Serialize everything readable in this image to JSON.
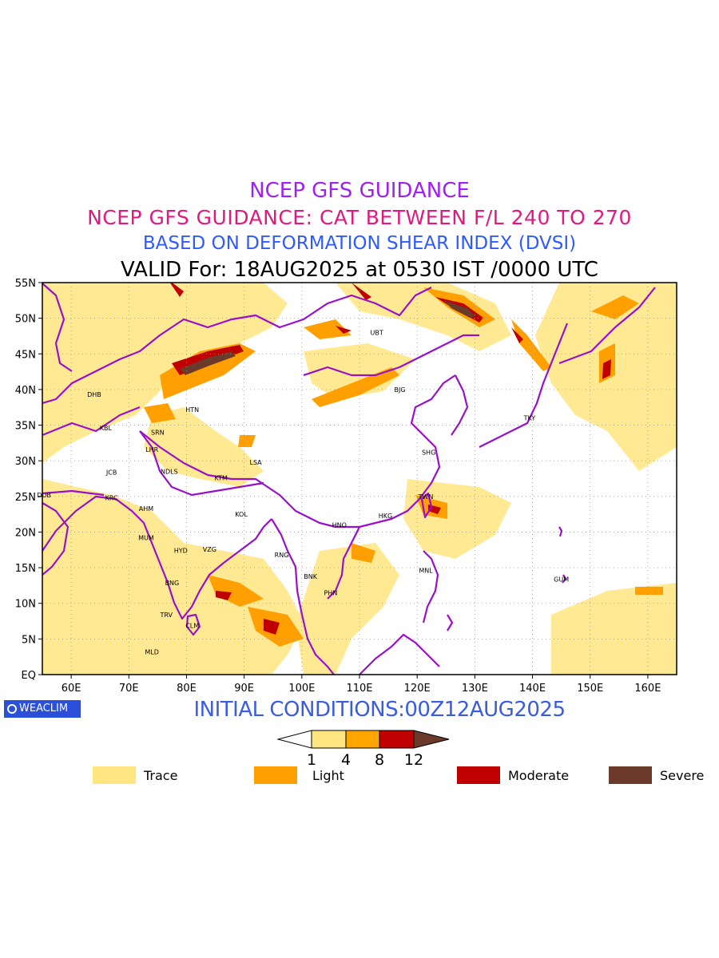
{
  "titles": {
    "line1": "NCEP GFS GUIDANCE",
    "line2": "NCEP GFS GUIDANCE: CAT BETWEEN F/L 240 TO 270",
    "line3": "BASED ON DEFORMATION SHEAR INDEX (DVSI)",
    "line4": "VALID For: 18AUG2025 at 0530 IST /0000 UTC"
  },
  "map": {
    "lat_labels": [
      "55N",
      "50N",
      "45N",
      "40N",
      "35N",
      "30N",
      "25N",
      "20N",
      "15N",
      "10N",
      "5N",
      "EQ"
    ],
    "lon_labels": [
      "60E",
      "70E",
      "80E",
      "90E",
      "100E",
      "110E",
      "120E",
      "130E",
      "140E",
      "150E",
      "160E"
    ],
    "stations": [
      {
        "code": "UBT",
        "lon": 113,
        "lat": 48
      },
      {
        "code": "BJG",
        "lon": 117,
        "lat": 40
      },
      {
        "code": "TKY",
        "lon": 139.5,
        "lat": 36
      },
      {
        "code": "DHB",
        "lon": 64,
        "lat": 39.3
      },
      {
        "code": "HTN",
        "lon": 81,
        "lat": 37.2
      },
      {
        "code": "KBL",
        "lon": 66,
        "lat": 34.6
      },
      {
        "code": "SRN",
        "lon": 75,
        "lat": 34
      },
      {
        "code": "LHR",
        "lon": 74,
        "lat": 31.6
      },
      {
        "code": "SHG",
        "lon": 122,
        "lat": 31.2
      },
      {
        "code": "LSA",
        "lon": 92,
        "lat": 29.8
      },
      {
        "code": "JCB",
        "lon": 67,
        "lat": 28.4
      },
      {
        "code": "NDLS",
        "lon": 77,
        "lat": 28.5
      },
      {
        "code": "KTM",
        "lon": 86,
        "lat": 27.6
      },
      {
        "code": "DUB",
        "lon": 55.3,
        "lat": 25.2
      },
      {
        "code": "KRC",
        "lon": 67,
        "lat": 24.8
      },
      {
        "code": "TWN",
        "lon": 121.5,
        "lat": 25
      },
      {
        "code": "AHM",
        "lon": 73,
        "lat": 23.3
      },
      {
        "code": "KOL",
        "lon": 89.5,
        "lat": 22.5
      },
      {
        "code": "HKG",
        "lon": 114.5,
        "lat": 22.3
      },
      {
        "code": "HNO",
        "lon": 106.5,
        "lat": 21
      },
      {
        "code": "MUM",
        "lon": 73,
        "lat": 19.2
      },
      {
        "code": "HYD",
        "lon": 79,
        "lat": 17.4
      },
      {
        "code": "VZG",
        "lon": 84,
        "lat": 17.6
      },
      {
        "code": "RNG",
        "lon": 96.5,
        "lat": 16.8
      },
      {
        "code": "BNK",
        "lon": 101.5,
        "lat": 13.8
      },
      {
        "code": "MNL",
        "lon": 121.5,
        "lat": 14.6
      },
      {
        "code": "GUM",
        "lon": 145,
        "lat": 13.4
      },
      {
        "code": "BNG",
        "lon": 77.5,
        "lat": 12.9
      },
      {
        "code": "PHN",
        "lon": 105,
        "lat": 11.5
      },
      {
        "code": "TRV",
        "lon": 76.5,
        "lat": 8.4
      },
      {
        "code": "CLM",
        "lon": 81,
        "lat": 6.9
      },
      {
        "code": "MLD",
        "lon": 74,
        "lat": 3.2
      }
    ]
  },
  "footer": {
    "logo_text": "WEACLIM",
    "init_conditions": "INITIAL CONDITIONS:00Z12AUG2025"
  },
  "colorbar": {
    "ticks": [
      "1",
      "4",
      "8",
      "12"
    ],
    "colors": [
      "#ffffff",
      "#ffe680",
      "#ffa500",
      "#c00000",
      "#6b3a2a"
    ]
  },
  "legend": [
    {
      "label": "Trace",
      "color": "#ffe680"
    },
    {
      "label": "Light",
      "color": "#ffa000"
    },
    {
      "label": "Moderate",
      "color": "#c00000"
    },
    {
      "label": "Severe",
      "color": "#6b3a2a"
    }
  ]
}
